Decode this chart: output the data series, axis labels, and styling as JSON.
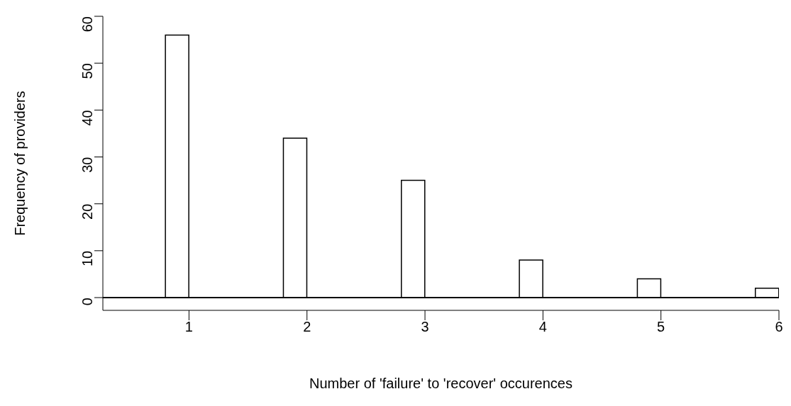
{
  "chart_data": {
    "type": "histogram",
    "xlabel": "Number of 'failure' to 'recover' occurences",
    "ylabel": "Frequency of providers",
    "bins": [
      0.8,
      1.0,
      1.2,
      1.4,
      1.6,
      1.8,
      2.0,
      2.2,
      2.4,
      2.6,
      2.8,
      3.0,
      3.2,
      3.4,
      3.6,
      3.8,
      4.0,
      4.2,
      4.4,
      4.6,
      4.8,
      5.0,
      5.2,
      5.4,
      5.6,
      5.8,
      6.0
    ],
    "values": [
      56,
      0,
      0,
      0,
      0,
      34,
      0,
      0,
      0,
      0,
      25,
      0,
      0,
      0,
      0,
      8,
      0,
      0,
      0,
      0,
      4,
      0,
      0,
      0,
      0,
      2
    ],
    "color": "#ffffff",
    "xlim": [
      0.27,
      6.0
    ],
    "xticks": [
      1,
      2,
      3,
      4,
      5,
      6
    ],
    "ylim": [
      0,
      60
    ],
    "yticks": [
      0,
      10,
      20,
      30,
      40,
      50,
      60
    ],
    "ref_lines": [
      {
        "axis": "y",
        "value": 0,
        "color": "#000000"
      }
    ],
    "grid": false,
    "legend": false
  }
}
